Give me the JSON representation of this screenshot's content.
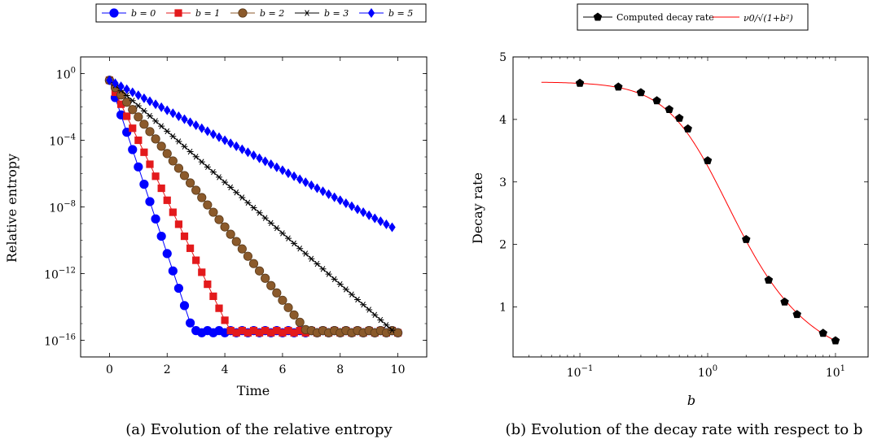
{
  "chart_data": [
    {
      "type": "line",
      "y_scale": "log",
      "xlabel": "Time",
      "ylabel": "Relative entropy",
      "xlim": [
        -1,
        11
      ],
      "ylim": [
        1e-17,
        10
      ],
      "x_ticks": [
        {
          "value": 0,
          "label": "0"
        },
        {
          "value": 2,
          "label": "2"
        },
        {
          "value": 4,
          "label": "4"
        },
        {
          "value": 6,
          "label": "6"
        },
        {
          "value": 8,
          "label": "8"
        },
        {
          "value": 10,
          "label": "10"
        }
      ],
      "y_ticks": [
        {
          "exp": 0,
          "label": "0"
        },
        {
          "exp": -4,
          "label": "−4"
        },
        {
          "exp": -8,
          "label": "−8"
        },
        {
          "exp": -12,
          "label": "−12"
        },
        {
          "exp": -16,
          "label": "−16"
        }
      ],
      "legend_position": "top",
      "caption": "(a) Evolution of the relative entropy",
      "series": [
        {
          "name": "b = 0",
          "color": "#0000ff",
          "marker": "circle",
          "rate_log10_per_unit_time": -5.2,
          "floor_log10": -15.5,
          "x_max": 10,
          "dx": 0.2
        },
        {
          "name": "b = 1",
          "color": "#e31a1c",
          "marker": "square",
          "rate_log10_per_unit_time": -3.6,
          "floor_log10": -15.5,
          "x_max": 10,
          "dx": 0.2
        },
        {
          "name": "b = 2",
          "color": "#8b5a2b",
          "marker": "circle",
          "rate_log10_per_unit_time": -2.2,
          "floor_log10": -15.5,
          "x_max": 10,
          "dx": 0.2
        },
        {
          "name": "b = 3",
          "color": "#000000",
          "marker": "star",
          "rate_log10_per_unit_time": -1.53,
          "floor_log10": -15.5,
          "x_max": 9.9,
          "dx": 0.2
        },
        {
          "name": "b = 5",
          "color": "#0000ff",
          "marker": "diamond",
          "rate_log10_per_unit_time": -0.9,
          "floor_log10": -15.5,
          "x_max": 9.9,
          "dx": 0.2
        }
      ],
      "start_log10": -0.4
    },
    {
      "type": "line",
      "x_scale": "log",
      "xlabel": "b",
      "ylabel": "Decay rate",
      "xlim": [
        0.03,
        18
      ],
      "ylim": [
        0.2,
        5.0
      ],
      "x_ticks": [
        {
          "exp": -1,
          "label": "−1"
        },
        {
          "exp": 0,
          "label": "0"
        },
        {
          "exp": 1,
          "label": "1"
        }
      ],
      "y_ticks": [
        {
          "value": 1,
          "label": "1"
        },
        {
          "value": 2,
          "label": "2"
        },
        {
          "value": 3,
          "label": "3"
        },
        {
          "value": 4,
          "label": "4"
        },
        {
          "value": 5,
          "label": "5"
        }
      ],
      "legend_position": "top",
      "caption": "(b) Evolution of the decay rate with respect to b",
      "series": [
        {
          "name": "Computed decay rate",
          "color": "#000000",
          "marker": "pentagon",
          "points": [
            [
              0.1,
              4.58
            ],
            [
              0.2,
              4.52
            ],
            [
              0.3,
              4.43
            ],
            [
              0.4,
              4.3
            ],
            [
              0.5,
              4.16
            ],
            [
              0.6,
              4.02
            ],
            [
              0.7,
              3.85
            ],
            [
              1,
              3.34
            ],
            [
              2,
              2.08
            ],
            [
              3,
              1.43
            ],
            [
              4,
              1.08
            ],
            [
              5,
              0.88
            ],
            [
              8,
              0.58
            ],
            [
              10,
              0.46
            ]
          ]
        },
        {
          "name": "ν0/√(1+b²)",
          "color": "#ff0000",
          "curve": "nu0_over_sqrt_one_plus_b2",
          "nu0": 4.6,
          "x_range": [
            0.05,
            10
          ]
        }
      ]
    }
  ]
}
